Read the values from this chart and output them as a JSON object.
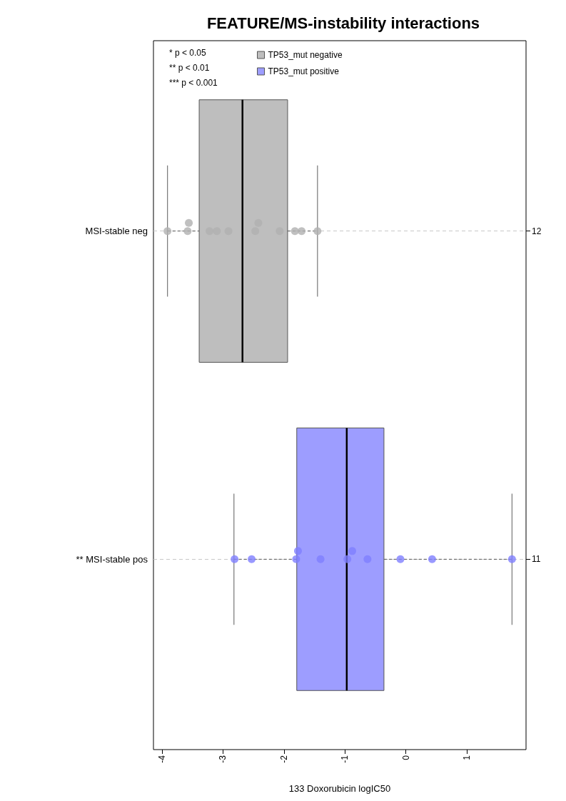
{
  "chart_data": {
    "type": "box",
    "title": "FEATURE/MS-instability interactions",
    "xlabel": "133 Doxorubicin logIC50",
    "orientation": "horizontal",
    "categories": [
      "MSI-stable neg",
      "** MSI-stable pos"
    ],
    "y2_categories": [
      "12",
      "11"
    ],
    "xlim": [
      -4.14,
      1.97
    ],
    "xticks": [
      -4,
      -3,
      -2,
      -1,
      0,
      1
    ],
    "grid": "y",
    "legend": "top left",
    "annotations": [
      "* p < 0.05",
      "** p < 0.01",
      "*** p < 0.001"
    ],
    "series": [
      {
        "name": "TP53_mut negative",
        "color": "#bebebe",
        "boxes": [
          {
            "low": -3.91,
            "q1": -3.39,
            "median": -2.68,
            "q3": -1.94,
            "high": -1.45
          },
          null
        ]
      },
      {
        "name": "TP53_mut positive",
        "color": "#9d9dff",
        "boxes": [
          null,
          {
            "low": -2.82,
            "q1": -1.79,
            "median": -0.97,
            "q3": -0.36,
            "high": 1.74
          }
        ]
      },
      {
        "type": "scatter",
        "color": "#b0b0b0",
        "x": [
          "MSI-stable neg",
          "MSI-stable neg",
          "MSI-stable neg",
          "MSI-stable neg",
          "MSI-stable neg",
          "MSI-stable neg",
          "MSI-stable neg",
          "MSI-stable neg",
          "MSI-stable neg",
          "MSI-stable neg",
          "MSI-stable neg",
          "MSI-stable neg"
        ],
        "values": [
          -3.91,
          -3.58,
          -3.56,
          -3.22,
          -3.1,
          -2.91,
          -2.47,
          -2.42,
          -2.07,
          -1.82,
          -1.71,
          -1.45
        ]
      },
      {
        "type": "scatter",
        "color": "#8080ff",
        "x": [
          "** MSI-stable pos",
          "** MSI-stable pos",
          "** MSI-stable pos",
          "** MSI-stable pos",
          "** MSI-stable pos",
          "** MSI-stable pos",
          "** MSI-stable pos",
          "** MSI-stable pos",
          "** MSI-stable pos",
          "** MSI-stable pos",
          "** MSI-stable pos"
        ],
        "values": [
          -2.81,
          -2.53,
          -1.8,
          -1.77,
          -1.4,
          -0.96,
          -0.88,
          -0.63,
          -0.09,
          0.43,
          1.74
        ]
      }
    ]
  }
}
